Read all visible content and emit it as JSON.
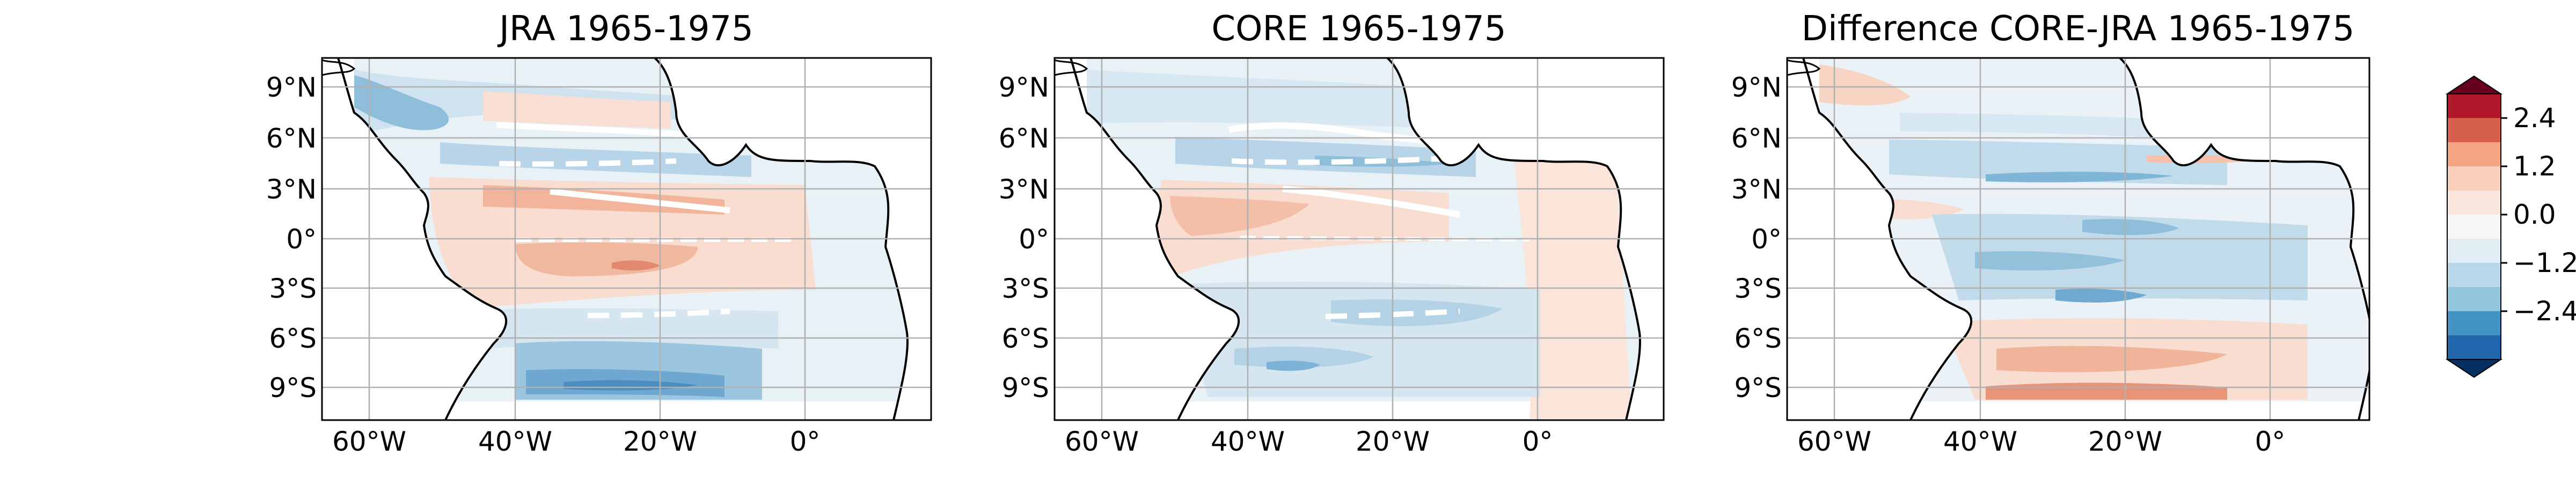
{
  "panels": [
    {
      "id": "jra",
      "title": "JRA 1965-1975"
    },
    {
      "id": "core",
      "title": "CORE 1965-1975"
    },
    {
      "id": "diff",
      "title": "Difference CORE-JRA 1965-1975"
    }
  ],
  "lat_ticks": [
    "9°N",
    "6°N",
    "3°N",
    "0°",
    "3°S",
    "6°S",
    "9°S"
  ],
  "lon_ticks": [
    "60°W",
    "40°W",
    "20°W",
    "0°"
  ],
  "colorbar": {
    "ticks": [
      "2.4",
      "1.2",
      "0.0",
      "−1.2",
      "−2.4"
    ]
  },
  "colors": {
    "coastline": "#000000",
    "grid": "#b0b0b0",
    "white_contour": "#ffffff"
  }
}
